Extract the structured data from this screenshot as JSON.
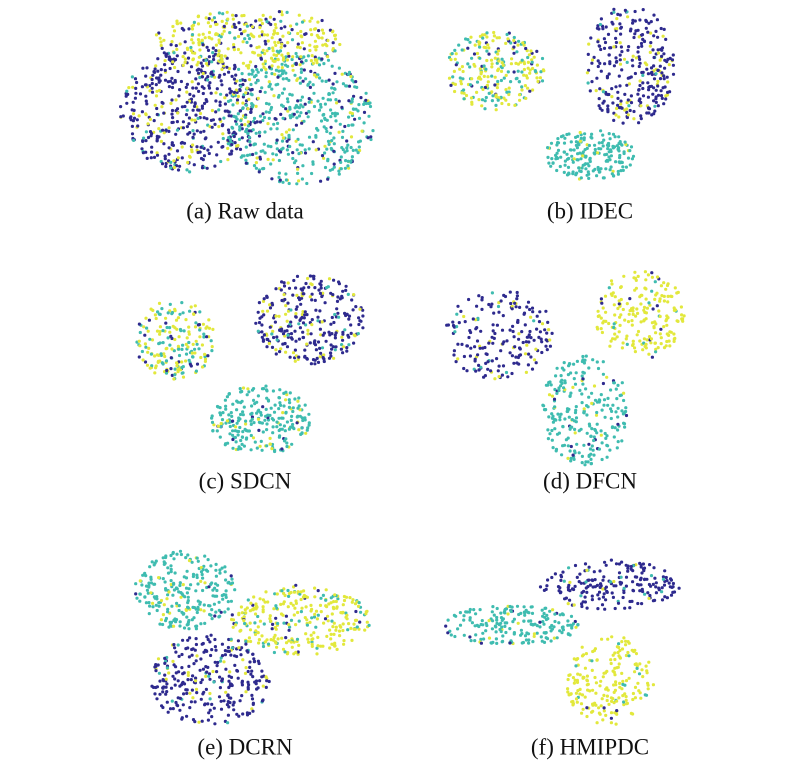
{
  "panels": [
    {
      "caption": "(a) Raw data"
    },
    {
      "caption": "(b) IDEC"
    },
    {
      "caption": "(c) SDCN"
    },
    {
      "caption": "(d) DFCN"
    },
    {
      "caption": "(e) DCRN"
    },
    {
      "caption": "(f) HMIPDC"
    }
  ]
}
